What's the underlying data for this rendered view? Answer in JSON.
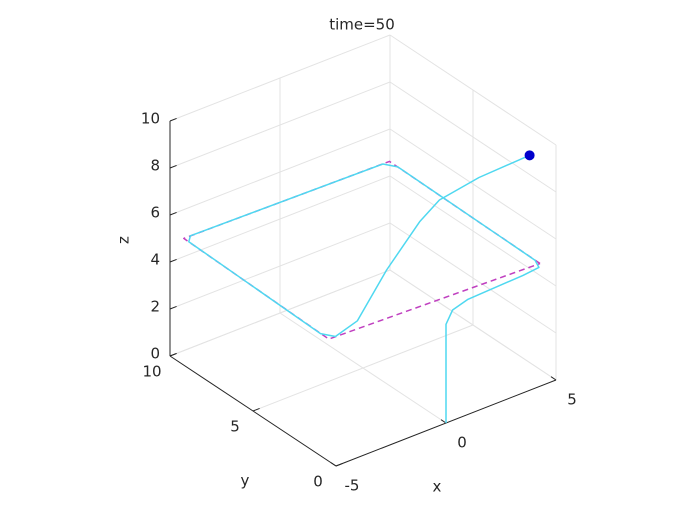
{
  "chart_data": {
    "type": "line3d",
    "title": "time=50",
    "xlabel": "x",
    "ylabel": "y",
    "zlabel": "z",
    "xlim": [
      -5,
      5
    ],
    "ylim": [
      0,
      10
    ],
    "zlim": [
      0,
      10
    ],
    "xticks": [
      -5,
      0,
      5
    ],
    "yticks": [
      0,
      5,
      10
    ],
    "zticks": [
      0,
      2,
      4,
      6,
      8,
      10
    ],
    "grid": true,
    "series": [
      {
        "color": "#c040c0",
        "dashed": true,
        "x": [
          4.5,
          4.6,
          -4.6,
          -4.8,
          4.5
        ],
        "y": [
          0.3,
          9.5,
          9.7,
          0.7,
          0.3
        ],
        "z": [
          5,
          5,
          5,
          5,
          5
        ]
      },
      {
        "color": "#4fd8f0",
        "dashed": false,
        "x": [
          0,
          0,
          0.3,
          1,
          3.5,
          4.3,
          4.5,
          4.6,
          4.3,
          -4.3,
          -4.6,
          -4.8,
          -4.5,
          -3.8,
          -2.7,
          -1.2,
          -0.3,
          1.5,
          3.8
        ],
        "y": [
          0,
          0,
          0,
          0,
          0,
          0.1,
          0.6,
          9,
          9.5,
          9.7,
          9.4,
          1.2,
          0.7,
          0.3,
          0,
          0,
          0,
          0,
          0
        ],
        "z": [
          0,
          4.2,
          4.7,
          4.9,
          5,
          5,
          5,
          5,
          5,
          5,
          5,
          5,
          5,
          5.6,
          7.5,
          9,
          9.6,
          9.9,
          10
        ]
      }
    ],
    "marker": {
      "x": 3.8,
      "y": 0,
      "z": 10,
      "color": "#0000cc"
    }
  }
}
